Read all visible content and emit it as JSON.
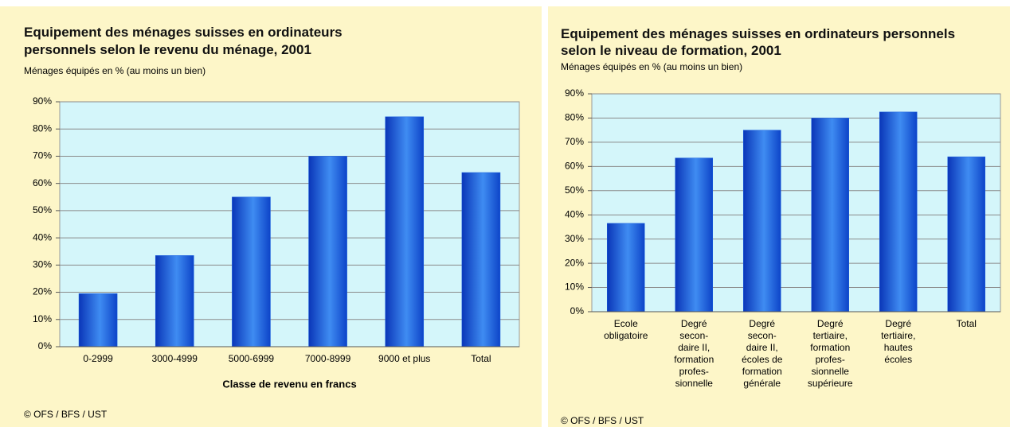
{
  "chart_data": [
    {
      "type": "bar",
      "title": "Equipement des ménages suisses en ordinateurs\npersonnels selon le revenu du ménage, 2001",
      "subtitle": "Ménages équipés en % (au moins un bien)",
      "x_label": "Classe de revenu en francs",
      "categories": [
        "0-2999",
        "3000-4999",
        "5000-6999",
        "7000-8999",
        "9000 et plus",
        "Total"
      ],
      "values": [
        19.5,
        33.5,
        55,
        70,
        84.5,
        64
      ],
      "color": "#1a5fe0",
      "ylim": [
        0,
        90
      ],
      "yticks": [
        {
          "value": 0,
          "label": "0%"
        },
        {
          "value": 10,
          "label": "10%"
        },
        {
          "value": 20,
          "label": "20%"
        },
        {
          "value": 30,
          "label": "30%"
        },
        {
          "value": 40,
          "label": "40%"
        },
        {
          "value": 50,
          "label": "50%"
        },
        {
          "value": 60,
          "label": "60%"
        },
        {
          "value": 70,
          "label": "70%"
        },
        {
          "value": 80,
          "label": "80%"
        },
        {
          "value": 90,
          "label": "90%"
        }
      ],
      "grid": true,
      "source": "© OFS / BFS / UST"
    },
    {
      "type": "bar",
      "title": "Equipement des ménages suisses en ordinateurs personnels\nselon le niveau de formation, 2001",
      "subtitle": "Ménages équipés en % (au moins un bien)",
      "categories": [
        "Ecole\nobligatoire",
        "Degré\nsecon-\ndaire II,\nformation\nprofes-\nsionnelle",
        "Degré\nsecon-\ndaire II,\nécoles de\nformation\ngénérale",
        "Degré\ntertiaire,\nformation\nprofes-\nsionnelle\nsupérieure",
        "Degré\ntertiaire,\nhautes\nécoles",
        "Total"
      ],
      "values": [
        36.5,
        63.5,
        75,
        80,
        82.5,
        64
      ],
      "color": "#1a5fe0",
      "ylim": [
        0,
        90
      ],
      "yticks": [
        {
          "value": 0,
          "label": "0%"
        },
        {
          "value": 10,
          "label": "10%"
        },
        {
          "value": 20,
          "label": "20%"
        },
        {
          "value": 30,
          "label": "30%"
        },
        {
          "value": 40,
          "label": "40%"
        },
        {
          "value": 50,
          "label": "50%"
        },
        {
          "value": 60,
          "label": "60%"
        },
        {
          "value": 70,
          "label": "70%"
        },
        {
          "value": 80,
          "label": "80%"
        },
        {
          "value": 90,
          "label": "90%"
        }
      ],
      "grid": true,
      "source": "© OFS / BFS / UST"
    }
  ]
}
